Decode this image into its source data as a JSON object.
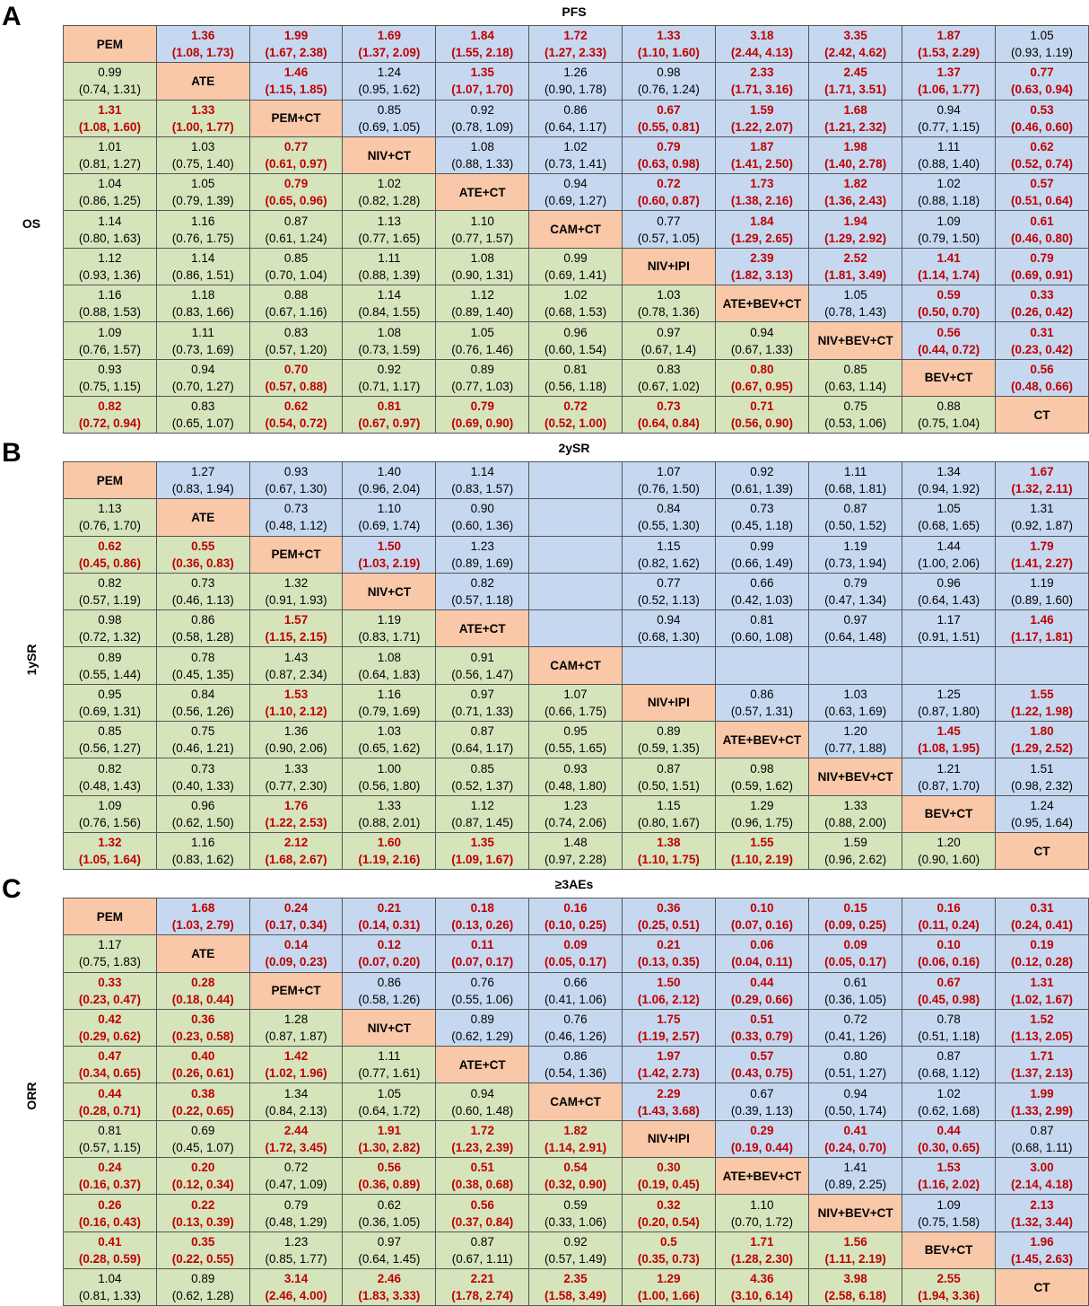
{
  "treatments": [
    "PEM",
    "ATE",
    "PEM+CT",
    "NIV+CT",
    "ATE+CT",
    "CAM+CT",
    "NIV+IPI",
    "ATE+BEV+CT",
    "NIV+BEV+CT",
    "BEV+CT",
    "CT"
  ],
  "colors": {
    "upper": "#c6d8f0",
    "lower": "#d6e4bc",
    "diagonal": "#f8c8a8",
    "significant": "#c00000"
  },
  "panels": [
    {
      "label": "A",
      "upper_title": "PFS",
      "lower_title": "OS",
      "rows": [
        [
          null,
          "1.36|(1.08, 1.73)|s",
          "1.99|(1.67, 2.38)|s",
          "1.69|(1.37, 2.09)|s",
          "1.84|(1.55, 2.18)|s",
          "1.72|(1.27, 2.33)|s",
          "1.33|(1.10, 1.60)|s",
          "3.18|(2.44, 4.13)|s",
          "3.35|(2.42, 4.62)|s",
          "1.87|(1.53, 2.29)|s",
          "1.05|(0.93, 1.19)"
        ],
        [
          "0.99|(0.74, 1.31)",
          null,
          "1.46|(1.15, 1.85)|s",
          "1.24|(0.95, 1.62)",
          "1.35|(1.07, 1.70)|s",
          "1.26|(0.90, 1.78)",
          "0.98|(0.76, 1.24)",
          "2.33|(1.71, 3.16)|s",
          "2.45|(1.71, 3.51)|s",
          "1.37|(1.06, 1.77)|s",
          "0.77|(0.63, 0.94)|s"
        ],
        [
          "1.31|(1.08, 1.60)|s",
          "1.33|(1.00, 1.77)|s",
          null,
          "0.85|(0.69, 1.05)",
          "0.92|(0.78, 1.09)",
          "0.86|(0.64, 1.17)",
          "0.67|(0.55, 0.81)|s",
          "1.59|(1.22, 2.07)|s",
          "1.68|(1.21, 2.32)|s",
          "0.94|(0.77, 1.15)",
          "0.53|(0.46, 0.60)|s"
        ],
        [
          "1.01|(0.81, 1.27)",
          "1.03|(0.75, 1.40)",
          "0.77|(0.61, 0.97)|s",
          null,
          "1.08|(0.88, 1.33)",
          "1.02|(0.73, 1.41)",
          "0.79|(0.63, 0.98)|s",
          "1.87|(1.41, 2.50)|s",
          "1.98|(1.40, 2.78)|s",
          "1.11|(0.88, 1.40)",
          "0.62|(0.52, 0.74)|s"
        ],
        [
          "1.04|(0.86, 1.25)",
          "1.05|(0.79, 1.39)",
          "0.79|(0.65, 0.96)|s",
          "1.02|(0.82, 1.28)",
          null,
          "0.94|(0.69, 1.27)",
          "0.72|(0.60, 0.87)|s",
          "1.73|(1.38, 2.16)|s",
          "1.82|(1.36, 2.43)|s",
          "1.02|(0.88, 1.18)",
          "0.57|(0.51, 0.64)|s"
        ],
        [
          "1.14|(0.80, 1.63)",
          "1.16|(0.76, 1.75)",
          "0.87|(0.61, 1.24)",
          "1.13|(0.77, 1.65)",
          "1.10|(0.77, 1.57)",
          null,
          "0.77|(0.57, 1.05)",
          "1.84|(1.29, 2.65)|s",
          "1.94|(1.29, 2.92)|s",
          "1.09|(0.79, 1.50)",
          "0.61|(0.46, 0.80)|s"
        ],
        [
          "1.12|(0.93, 1.36)",
          "1.14|(0.86, 1.51)",
          "0.85|(0.70, 1.04)",
          "1.11|(0.88, 1.39)",
          "1.08|(0.90, 1.31)",
          "0.99|(0.69, 1.41)",
          null,
          "2.39|(1.82, 3.13)|s",
          "2.52|(1.81, 3.49)|s",
          "1.41|(1.14, 1.74)|s",
          "0.79|(0.69, 0.91)|s"
        ],
        [
          "1.16|(0.88, 1.53)",
          "1.18|(0.83, 1.66)",
          "0.88|(0.67, 1.16)",
          "1.14|(0.84, 1.55)",
          "1.12|(0.89, 1.40)",
          "1.02|(0.68, 1.53)",
          "1.03|(0.78, 1.36)",
          null,
          "1.05|(0.78, 1.43)",
          "0.59|(0.50, 0.70)|s",
          "0.33|(0.26, 0.42)|s"
        ],
        [
          "1.09|(0.76, 1.57)",
          "1.11|(0.73, 1.69)",
          "0.83|(0.57, 1.20)",
          "1.08|(0.73, 1.59)",
          "1.05|(0.76, 1.46)",
          "0.96|(0.60, 1.54)",
          "0.97|(0.67, 1.4)",
          "0.94|(0.67, 1.33)",
          null,
          "0.56|(0.44, 0.72)|s",
          "0.31|(0.23, 0.42)|s"
        ],
        [
          "0.93|(0.75, 1.15)",
          "0.94|(0.70, 1.27)",
          "0.70|(0.57, 0.88)|s",
          "0.92|(0.71, 1.17)",
          "0.89|(0.77, 1.03)",
          "0.81|(0.56, 1.18)",
          "0.83|(0.67, 1.02)",
          "0.80|(0.67, 0.95)|s",
          "0.85|(0.63, 1.14)",
          null,
          "0.56|(0.48, 0.66)|s"
        ],
        [
          "0.82|(0.72, 0.94)|s",
          "0.83|(0.65, 1.07)",
          "0.62|(0.54, 0.72)|s",
          "0.81|(0.67, 0.97)|s",
          "0.79|(0.69, 0.90)|s",
          "0.72|(0.52, 1.00)|s",
          "0.73|(0.64, 0.84)|s",
          "0.71|(0.56, 0.90)|s",
          "0.75|(0.53, 1.06)",
          "0.88|(0.75, 1.04)",
          null
        ]
      ]
    },
    {
      "label": "B",
      "upper_title": "2ySR",
      "lower_title": "1ySR",
      "rows": [
        [
          null,
          "1.27|(0.83, 1.94)",
          "0.93|(0.67, 1.30)",
          "1.40|(0.96, 2.04)",
          "1.14|(0.83, 1.57)",
          "",
          "1.07|(0.76, 1.50)",
          "0.92|(0.61, 1.39)",
          "1.11|(0.68, 1.81)",
          "1.34|(0.94, 1.92)",
          "1.67|(1.32, 2.11)|s"
        ],
        [
          "1.13|(0.76, 1.70)",
          null,
          "0.73|(0.48, 1.12)",
          "1.10|(0.69, 1.74)",
          "0.90|(0.60, 1.36)",
          "",
          "0.84|(0.55, 1.30)",
          "0.73|(0.45, 1.18)",
          "0.87|(0.50, 1.52)",
          "1.05|(0.68, 1.65)",
          "1.31|(0.92, 1.87)"
        ],
        [
          "0.62|(0.45, 0.86)|s",
          "0.55|(0.36, 0.83)|s",
          null,
          "1.50|(1.03, 2.19)|s",
          "1.23|(0.89, 1.69)",
          "",
          "1.15|(0.82, 1.62)",
          "0.99|(0.66, 1.49)",
          "1.19|(0.73, 1.94)",
          "1.44|(1.00, 2.06)",
          "1.79|(1.41, 2.27)|s"
        ],
        [
          "0.82|(0.57, 1.19)",
          "0.73|(0.46, 1.13)",
          "1.32|(0.91, 1.93)",
          null,
          "0.82|(0.57, 1.18)",
          "",
          "0.77|(0.52, 1.13)",
          "0.66|(0.42, 1.03)",
          "0.79|(0.47, 1.34)",
          "0.96|(0.64, 1.43)",
          "1.19|(0.89, 1.60)"
        ],
        [
          "0.98|(0.72, 1.32)",
          "0.86|(0.58, 1.28)",
          "1.57|(1.15, 2.15)|s",
          "1.19|(0.83, 1.71)",
          null,
          "",
          "0.94|(0.68, 1.30)",
          "0.81|(0.60, 1.08)",
          "0.97|(0.64, 1.48)",
          "1.17|(0.91, 1.51)",
          "1.46|(1.17, 1.81)|s"
        ],
        [
          "0.89|(0.55, 1.44)",
          "0.78|(0.45, 1.35)",
          "1.43|(0.87, 2.34)",
          "1.08|(0.64, 1.83)",
          "0.91|(0.56, 1.47)",
          null,
          "",
          "",
          "",
          "",
          ""
        ],
        [
          "0.95|(0.69, 1.31)",
          "0.84|(0.56, 1.26)",
          "1.53|(1.10, 2.12)|s",
          "1.16|(0.79, 1.69)",
          "0.97|(0.71, 1.33)",
          "1.07|(0.66, 1.75)",
          null,
          "0.86|(0.57, 1.31)",
          "1.03|(0.63, 1.69)",
          "1.25|(0.87, 1.80)",
          "1.55|(1.22, 1.98)|s"
        ],
        [
          "0.85|(0.56, 1.27)",
          "0.75|(0.46, 1.21)",
          "1.36|(0.90, 2.06)",
          "1.03|(0.65, 1.62)",
          "0.87|(0.64, 1.17)",
          "0.95|(0.55, 1.65)",
          "0.89|(0.59, 1.35)",
          null,
          "1.20|(0.77, 1.88)",
          "1.45|(1.08, 1.95)|s",
          "1.80|(1.29, 2.52)|s"
        ],
        [
          "0.82|(0.48, 1.43)",
          "0.73|(0.40, 1.33)",
          "1.33|(0.77, 2.30)",
          "1.00|(0.56, 1.80)",
          "0.85|(0.52, 1.37)",
          "0.93|(0.48, 1.80)",
          "0.87|(0.50, 1.51)",
          "0.98|(0.59, 1.62)",
          null,
          "1.21|(0.87, 1.70)",
          "1.51|(0.98, 2.32)"
        ],
        [
          "1.09|(0.76, 1.56)",
          "0.96|(0.62, 1.50)",
          "1.76|(1.22, 2.53)|s",
          "1.33|(0.88, 2.01)",
          "1.12|(0.87, 1.45)",
          "1.23|(0.74, 2.06)",
          "1.15|(0.80, 1.67)",
          "1.29|(0.96, 1.75)",
          "1.33|(0.88, 2.00)",
          null,
          "1.24|(0.95, 1.64)"
        ],
        [
          "1.32|(1.05, 1.64)|s",
          "1.16|(0.83, 1.62)",
          "2.12|(1.68, 2.67)|s",
          "1.60|(1.19, 2.16)|s",
          "1.35|(1.09, 1.67)|s",
          "1.48|(0.97, 2.28)",
          "1.38|(1.10, 1.75)|s",
          "1.55|(1.10, 2.19)|s",
          "1.59|(0.96, 2.62)",
          "1.20|(0.90, 1.60)",
          null
        ]
      ]
    },
    {
      "label": "C",
      "upper_title": "≥3AEs",
      "lower_title": "ORR",
      "rows": [
        [
          null,
          "1.68|(1.03, 2.79)|s",
          "0.24|(0.17, 0.34)|s",
          "0.21|(0.14, 0.31)|s",
          "0.18|(0.13, 0.26)|s",
          "0.16|(0.10, 0.25)|s",
          "0.36|(0.25, 0.51)|s",
          "0.10|(0.07, 0.16)|s",
          "0.15|(0.09, 0.25)|s",
          "0.16|(0.11, 0.24)|s",
          "0.31|(0.24, 0.41)|s"
        ],
        [
          "1.17|(0.75, 1.83)",
          null,
          "0.14|(0.09, 0.23)|s",
          "0.12|(0.07, 0.20)|s",
          "0.11|(0.07, 0.17)|s",
          "0.09|(0.05, 0.17)|s",
          "0.21|(0.13, 0.35)|s",
          "0.06|(0.04, 0.11)|s",
          "0.09|(0.05, 0.17)|s",
          "0.10|(0.06, 0.16)|s",
          "0.19|(0.12, 0.28)|s"
        ],
        [
          "0.33|(0.23, 0.47)|s",
          "0.28|(0.18, 0.44)|s",
          null,
          "0.86|(0.58, 1.26)",
          "0.76|(0.55, 1.06)",
          "0.66|(0.41, 1.06)",
          "1.50|(1.06, 2.12)|s",
          "0.44|(0.29, 0.66)|s",
          "0.61|(0.36, 1.05)",
          "0.67|(0.45, 0.98)|s",
          "1.31|(1.02, 1.67)|s"
        ],
        [
          "0.42|(0.29, 0.62)|s",
          "0.36|(0.23, 0.58)|s",
          "1.28|(0.87, 1.87)",
          null,
          "0.89|(0.62, 1.29)",
          "0.76|(0.46, 1.26)",
          "1.75|(1.19, 2.57)|s",
          "0.51|(0.33, 0.79)|s",
          "0.72|(0.41, 1.26)",
          "0.78|(0.51, 1.18)",
          "1.52|(1.13, 2.05)|s"
        ],
        [
          "0.47|(0.34, 0.65)|s",
          "0.40|(0.26, 0.61)|s",
          "1.42|(1.02, 1.96)|s",
          "1.11|(0.77, 1.61)",
          null,
          "0.86|(0.54, 1.36)",
          "1.97|(1.42, 2.73)|s",
          "0.57|(0.43, 0.75)|s",
          "0.80|(0.51, 1.27)",
          "0.87|(0.68, 1.12)",
          "1.71|(1.37, 2.13)|s"
        ],
        [
          "0.44|(0.28, 0.71)|s",
          "0.38|(0.22, 0.65)|s",
          "1.34|(0.84, 2.13)",
          "1.05|(0.64, 1.72)",
          "0.94|(0.60, 1.48)",
          null,
          "2.29|(1.43, 3.68)|s",
          "0.67|(0.39, 1.13)",
          "0.94|(0.50, 1.74)",
          "1.02|(0.62, 1.68)",
          "1.99|(1.33, 2.99)|s"
        ],
        [
          "0.81|(0.57, 1.15)",
          "0.69|(0.45, 1.07)",
          "2.44|(1.72, 3.45)|s",
          "1.91|(1.30, 2.82)|s",
          "1.72|(1.23, 2.39)|s",
          "1.82|(1.14, 2.91)|s",
          null,
          "0.29|(0.19, 0.44)|s",
          "0.41|(0.24, 0.70)|s",
          "0.44|(0.30, 0.65)|s",
          "0.87|(0.68, 1.11)"
        ],
        [
          "0.24|(0.16, 0.37)|s",
          "0.20|(0.12, 0.34)|s",
          "0.72|(0.47, 1.09)",
          "0.56|(0.36, 0.89)|s",
          "0.51|(0.38, 0.68)|s",
          "0.54|(0.32, 0.90)|s",
          "0.30|(0.19, 0.45)|s",
          null,
          "1.41|(0.89, 2.25)",
          "1.53|(1.16, 2.02)|s",
          "3.00|(2.14, 4.18)|s"
        ],
        [
          "0.26|(0.16, 0.43)|s",
          "0.22|(0.13, 0.39)|s",
          "0.79|(0.48, 1.29)",
          "0.62|(0.36, 1.05)",
          "0.56|(0.37, 0.84)|s",
          "0.59|(0.33, 1.06)",
          "0.32|(0.20, 0.54)|s",
          "1.10|(0.70, 1.72)",
          null,
          "1.09|(0.75, 1.58)",
          "2.13|(1.32, 3.44)|s"
        ],
        [
          "0.41|(0.28, 0.59)|s",
          "0.35|(0.22, 0.55)|s",
          "1.23|(0.85, 1.77)",
          "0.97|(0.64, 1.45)",
          "0.87|(0.67, 1.11)",
          "0.92|(0.57, 1.49)",
          "0.5|(0.35, 0.73)|s",
          "1.71|(1.28, 2.30)|s",
          "1.56|(1.11, 2.19)|s",
          null,
          "1.96|(1.45, 2.63)|s"
        ],
        [
          "1.04|(0.81, 1.33)",
          "0.89|(0.62, 1.28)",
          "3.14|(2.46, 4.00)|s",
          "2.46|(1.83, 3.33)|s",
          "2.21|(1.78, 2.74)|s",
          "2.35|(1.58, 3.49)|s",
          "1.29|(1.00, 1.66)|s",
          "4.36|(3.10, 6.14)|s",
          "3.98|(2.58, 6.18)|s",
          "2.55|(1.94, 3.36)|s",
          null
        ]
      ]
    }
  ]
}
